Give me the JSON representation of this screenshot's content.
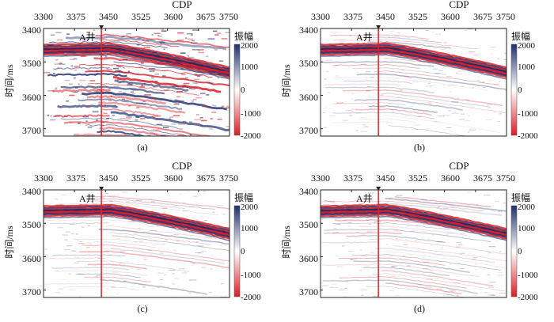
{
  "figure": {
    "x_axis_label": "CDP",
    "y_axis_label": "时间/ms",
    "x_ticks": [
      "3300",
      "3375",
      "3450",
      "3525",
      "3600",
      "3675",
      "3750"
    ],
    "y_ticks": [
      "3400",
      "3500",
      "3600",
      "3700"
    ],
    "colorbar_title": "振幅",
    "colorbar_ticks": [
      "2000",
      "1000",
      "0",
      "-1000",
      "-2000"
    ],
    "well_label": "A井",
    "colors": {
      "positive": "#1f2f6b",
      "negative": "#d81e28",
      "zero": "#ffffff",
      "well_line": "#d8232a"
    }
  },
  "panels": [
    {
      "caption": "(a)",
      "noise": "high"
    },
    {
      "caption": "(b)",
      "noise": "low"
    },
    {
      "caption": "(c)",
      "noise": "low"
    },
    {
      "caption": "(d)",
      "noise": "low"
    }
  ]
}
